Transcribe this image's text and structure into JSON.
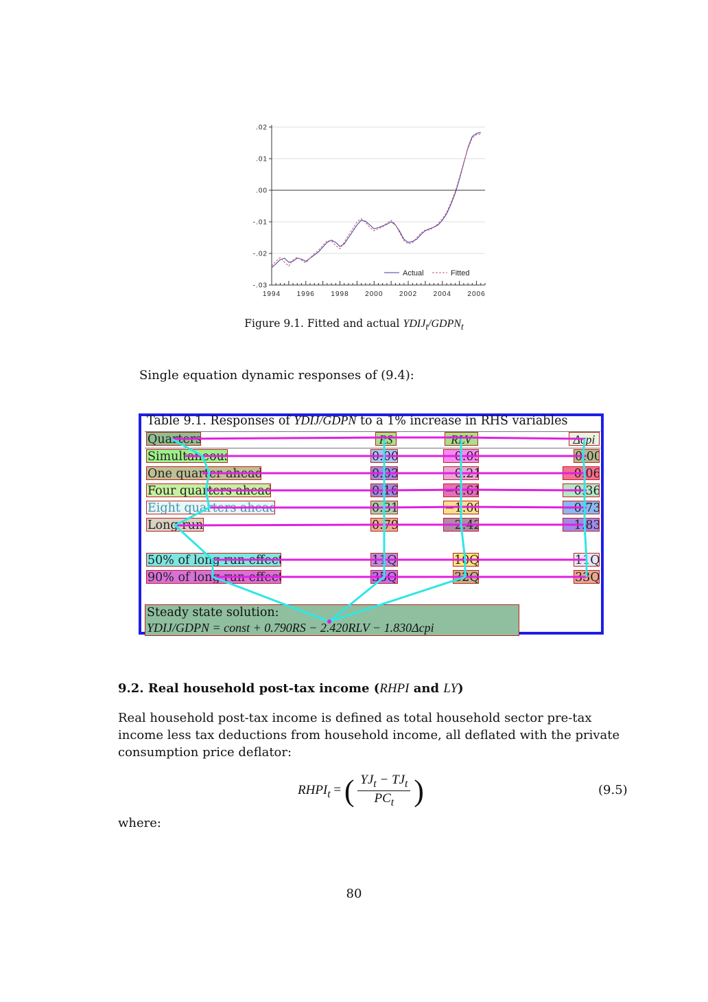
{
  "chart_data": {
    "type": "line",
    "title": "",
    "xlabel": "",
    "ylabel": "",
    "x_ticks": [
      "1994",
      "1996",
      "1998",
      "2000",
      "2002",
      "2004",
      "2006"
    ],
    "y_ticks": [
      ".02",
      ".01",
      ".00",
      "-.01",
      "-.02",
      "-.03"
    ],
    "xlim": [
      1994,
      2006.5
    ],
    "ylim": [
      -0.03,
      0.02
    ],
    "grid": true,
    "legend_placement": "bottom-right",
    "zero_line": true,
    "x": [
      1994.0,
      1994.25,
      1994.5,
      1994.75,
      1995.0,
      1995.25,
      1995.5,
      1995.75,
      1996.0,
      1996.25,
      1996.5,
      1996.75,
      1997.0,
      1997.25,
      1997.5,
      1997.75,
      1998.0,
      1998.25,
      1998.5,
      1998.75,
      1999.0,
      1999.25,
      1999.5,
      1999.75,
      2000.0,
      2000.25,
      2000.5,
      2000.75,
      2001.0,
      2001.25,
      2001.5,
      2001.75,
      2002.0,
      2002.25,
      2002.5,
      2002.75,
      2003.0,
      2003.25,
      2003.5,
      2003.75,
      2004.0,
      2004.25,
      2004.5,
      2004.75,
      2005.0,
      2005.25,
      2005.5,
      2005.75,
      2006.0,
      2006.25
    ],
    "series": [
      {
        "name": "Actual",
        "style": "solid",
        "color": "#3a3aa0",
        "values": [
          -0.0245,
          -0.0233,
          -0.022,
          -0.0215,
          -0.0228,
          -0.0225,
          -0.0215,
          -0.0218,
          -0.0225,
          -0.0215,
          -0.0205,
          -0.0195,
          -0.018,
          -0.0165,
          -0.0158,
          -0.0165,
          -0.0178,
          -0.017,
          -0.015,
          -0.013,
          -0.011,
          -0.0095,
          -0.0098,
          -0.011,
          -0.0122,
          -0.0118,
          -0.0113,
          -0.0108,
          -0.01,
          -0.011,
          -0.013,
          -0.0155,
          -0.0165,
          -0.0162,
          -0.0155,
          -0.014,
          -0.0128,
          -0.0122,
          -0.0117,
          -0.011,
          -0.0095,
          -0.0075,
          -0.0045,
          -0.001,
          0.0035,
          0.0085,
          0.0135,
          0.017,
          0.018,
          0.0183
        ]
      },
      {
        "name": "Fitted",
        "style": "dashed",
        "color": "#cc5566",
        "values": [
          -0.024,
          -0.0225,
          -0.0213,
          -0.0228,
          -0.024,
          -0.022,
          -0.0212,
          -0.0222,
          -0.023,
          -0.0215,
          -0.02,
          -0.019,
          -0.0175,
          -0.016,
          -0.016,
          -0.0175,
          -0.0185,
          -0.0165,
          -0.0142,
          -0.0122,
          -0.01,
          -0.009,
          -0.0102,
          -0.0118,
          -0.0128,
          -0.0122,
          -0.0116,
          -0.0104,
          -0.0095,
          -0.0108,
          -0.0135,
          -0.016,
          -0.017,
          -0.0166,
          -0.015,
          -0.0135,
          -0.0126,
          -0.0126,
          -0.0116,
          -0.0106,
          -0.009,
          -0.007,
          -0.004,
          -0.0005,
          0.004,
          0.0088,
          0.0132,
          0.0165,
          0.0176,
          0.0178
        ]
      }
    ]
  },
  "figure_caption": {
    "label": "Figure 9.1.  Fitted and actual",
    "math": "YDIJ_t/GDPN_t"
  },
  "lead_text": "Single equation dynamic responses of (9.4):",
  "table": {
    "title_prefix": "Table 9.1.  Responses of",
    "title_math": "YDIJ/GDPN",
    "title_suffix": "to a 1% increase in RHS variables",
    "header": {
      "rows_label": "Quarters",
      "col1": "RS",
      "col2": "RLV",
      "col3": "Δcpi"
    },
    "rows": [
      {
        "label": "Simultaneous",
        "c1": "0.00",
        "c2": "−0.09",
        "c3": "0.00"
      },
      {
        "label": "One quarter ahead",
        "c1": "0.03",
        "c2": "−0.21",
        "c3": "−0.06"
      },
      {
        "label": "Four quarters ahead",
        "c1": "0.16",
        "c2": "−0.61",
        "c3": "−0.36"
      },
      {
        "label": "Eight quarters ahead",
        "c1": "0.31",
        "c2": "−1.06",
        "c3": "−0.73"
      },
      {
        "label": "Long run",
        "c1": "0.79",
        "c2": "−2.42",
        "c3": "−1.83"
      },
      {
        "label": "50% of long run effect",
        "c1": "11Q",
        "c2": "10Q",
        "c3": "11Q"
      },
      {
        "label": "90% of long run effect",
        "c1": "35Q",
        "c2": "32Q",
        "c3": "33Q"
      }
    ],
    "steady_state_label": "Steady state solution:",
    "steady_state_equation": "YDIJ/GDPN = const + 0.790RS − 2.420RLV − 1.830Δcpi"
  },
  "section": {
    "heading_prefix": "9.2.  Real household post-tax income (",
    "heading_math1": "RHPI",
    "heading_and": " and ",
    "heading_math2": "LY",
    "heading_suffix": ")",
    "body": "Real household post-tax income is defined as total household sector pre-tax income less tax deductions from household income, all deflated with the private consumption price deflator:",
    "equation_lhs": "RHPI",
    "equation_numerator": "YJ_t − TJ_t",
    "equation_denominator": "PC_t",
    "equation_number": "(9.5)",
    "where": "where:"
  },
  "page_number": "80",
  "annotation_colors": {
    "table_border": "#1e1ee6",
    "row_links": "#e020e0",
    "column_links": "#30e6e6",
    "cell_borders": "#c02020"
  }
}
